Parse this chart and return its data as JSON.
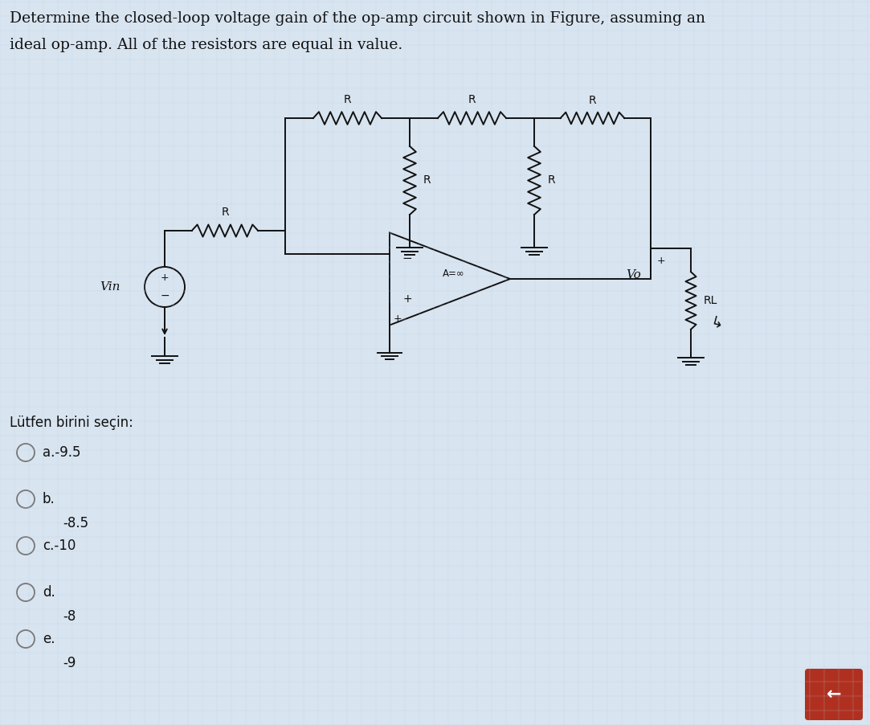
{
  "title_line1": "Determine the closed-loop voltage gain of the op-amp circuit shown in Figure, assuming an",
  "title_line2": "ideal op-amp. All of the resistors are equal in value.",
  "question_text": "Lütfen birini seçin:",
  "options": [
    {
      "label": "a.",
      "value": "-9.5",
      "sameline": true
    },
    {
      "label": "b.",
      "value": "-8.5",
      "sameline": false
    },
    {
      "label": "c.",
      "value": "-10",
      "sameline": true
    },
    {
      "label": "d.",
      "value": "-8",
      "sameline": false
    },
    {
      "label": "e.",
      "value": "-9",
      "sameline": false
    }
  ],
  "bg_color": "#d8e4f0",
  "text_color": "#111111",
  "circuit_color": "#111111",
  "font_size_title": 13.5,
  "font_size_labels": 10,
  "font_size_options": 12,
  "grid_color": "#b8cce0",
  "grid_alpha": 0.5
}
